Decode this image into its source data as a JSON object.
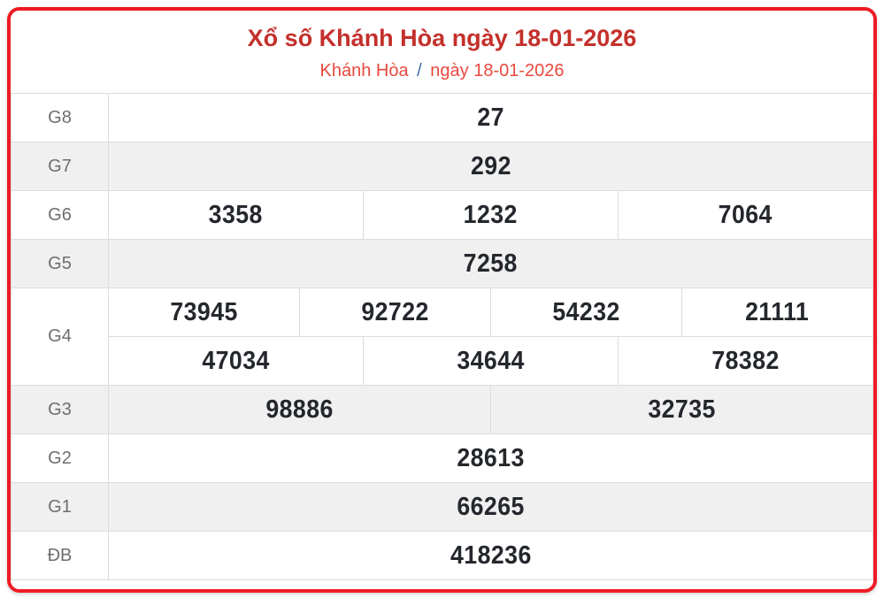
{
  "header": {
    "title": "Xổ số Khánh Hòa ngày 18-01-2026",
    "breadcrumb": {
      "region": "Khánh Hòa",
      "separator": "/",
      "date": "ngày 18-01-2026"
    }
  },
  "results": {
    "g8": {
      "label": "G8",
      "v1": "27"
    },
    "g7": {
      "label": "G7",
      "v1": "292"
    },
    "g6": {
      "label": "G6",
      "v1": "3358",
      "v2": "1232",
      "v3": "7064"
    },
    "g5": {
      "label": "G5",
      "v1": "7258"
    },
    "g4": {
      "label": "G4",
      "v1": "73945",
      "v2": "92722",
      "v3": "54232",
      "v4": "21111",
      "v5": "47034",
      "v6": "34644",
      "v7": "78382"
    },
    "g3": {
      "label": "G3",
      "v1": "98886",
      "v2": "32735"
    },
    "g2": {
      "label": "G2",
      "v1": "28613"
    },
    "g1": {
      "label": "G1",
      "v1": "66265"
    },
    "special": {
      "label": "ĐB",
      "v1": "418236"
    }
  },
  "colors": {
    "card_border": "#ed1c24",
    "title_text": "#c4302b",
    "subtitle_text": "#e8493e",
    "breadcrumb_separator": "#3a6ea5",
    "number_text": "#24272c",
    "special_number_text": "#fa3b14",
    "stripe_row_bg": "#f0f0f0",
    "cell_border": "#dcdcdc"
  }
}
